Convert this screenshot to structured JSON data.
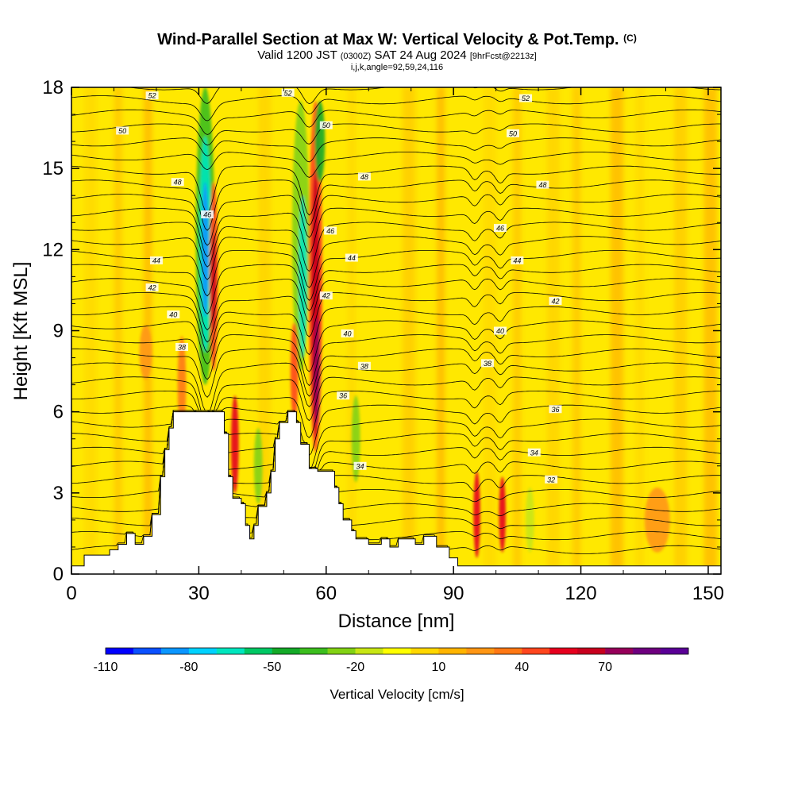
{
  "title": {
    "main": "Wind-Parallel Section at Max W: Vertical Velocity & Pot.Temp.",
    "copyright": "(C)",
    "valid_prefix": "Valid 1200 JST",
    "valid_utc": "(0300Z)",
    "valid_date": "SAT 24 Aug 2024",
    "forecast": "[9hrFcst@2213z]",
    "indices": "i,j,k,angle=92,59,24,116"
  },
  "chart_data": {
    "type": "heatmap",
    "xlabel": "Distance [nm]",
    "ylabel": "Height [Kft MSL]",
    "xlim": [
      0,
      153
    ],
    "ylim": [
      0,
      18
    ],
    "x_ticks": [
      "0",
      "30",
      "60",
      "90",
      "120",
      "150"
    ],
    "y_ticks": [
      "0",
      "3",
      "6",
      "9",
      "12",
      "15",
      "18"
    ],
    "colorbar": {
      "title": "Vertical Velocity [cm/s]",
      "tick_labels": [
        "-110",
        "-80",
        "-50",
        "-20",
        "10",
        "40",
        "70"
      ],
      "colors": [
        "#0000ff",
        "#0a50ff",
        "#0a96ff",
        "#00d2ff",
        "#00e6be",
        "#00c864",
        "#14aa28",
        "#3cbe1e",
        "#82d214",
        "#c8e614",
        "#ffff00",
        "#ffd700",
        "#ffb400",
        "#ff9614",
        "#ff7814",
        "#ff461e",
        "#e6001e",
        "#c8001e",
        "#96005a",
        "#6e007f",
        "#5a0096"
      ]
    },
    "terrain_kft": [
      [
        0,
        0.3
      ],
      [
        3,
        0.3
      ],
      [
        3,
        0.7
      ],
      [
        9,
        0.7
      ],
      [
        9,
        0.9
      ],
      [
        11,
        0.9
      ],
      [
        11,
        1.1
      ],
      [
        13,
        1.1
      ],
      [
        13,
        1.5
      ],
      [
        15,
        1.5
      ],
      [
        15,
        1.1
      ],
      [
        17,
        1.1
      ],
      [
        17,
        1.4
      ],
      [
        19,
        1.4
      ],
      [
        19,
        2.2
      ],
      [
        21,
        2.2
      ],
      [
        21,
        3.6
      ],
      [
        22,
        3.6
      ],
      [
        22,
        4.6
      ],
      [
        23,
        4.6
      ],
      [
        23,
        5.4
      ],
      [
        24,
        5.4
      ],
      [
        24,
        6.0
      ],
      [
        30,
        6.0
      ],
      [
        30,
        6.0
      ],
      [
        36,
        6.0
      ],
      [
        36,
        5.2
      ],
      [
        37,
        5.2
      ],
      [
        37,
        3.6
      ],
      [
        38,
        3.6
      ],
      [
        38,
        2.8
      ],
      [
        40,
        2.8
      ],
      [
        40,
        2.6
      ],
      [
        41,
        2.6
      ],
      [
        41,
        1.8
      ],
      [
        42,
        1.8
      ],
      [
        42,
        1.3
      ],
      [
        43,
        1.3
      ],
      [
        43,
        1.8
      ],
      [
        44,
        1.8
      ],
      [
        44,
        2.5
      ],
      [
        46,
        2.5
      ],
      [
        46,
        3.0
      ],
      [
        47,
        3.0
      ],
      [
        47,
        3.8
      ],
      [
        48,
        3.8
      ],
      [
        48,
        5.0
      ],
      [
        49,
        5.0
      ],
      [
        49,
        5.6
      ],
      [
        51,
        5.6
      ],
      [
        51,
        6.0
      ],
      [
        53,
        6.0
      ],
      [
        53,
        5.6
      ],
      [
        54,
        5.6
      ],
      [
        54,
        4.8
      ],
      [
        56,
        4.8
      ],
      [
        56,
        3.9
      ],
      [
        58,
        3.9
      ],
      [
        58,
        3.8
      ],
      [
        62,
        3.8
      ],
      [
        62,
        3.2
      ],
      [
        63,
        3.2
      ],
      [
        63,
        2.6
      ],
      [
        64,
        2.6
      ],
      [
        64,
        2.0
      ],
      [
        66,
        2.0
      ],
      [
        66,
        1.6
      ],
      [
        67,
        1.6
      ],
      [
        67,
        1.3
      ],
      [
        70,
        1.3
      ],
      [
        70,
        1.1
      ],
      [
        73,
        1.1
      ],
      [
        73,
        1.3
      ],
      [
        75,
        1.3
      ],
      [
        75,
        1.0
      ],
      [
        77,
        1.0
      ],
      [
        77,
        1.3
      ],
      [
        81,
        1.3
      ],
      [
        81,
        1.1
      ],
      [
        83,
        1.1
      ],
      [
        83,
        1.4
      ],
      [
        86,
        1.4
      ],
      [
        86,
        1.0
      ],
      [
        89,
        1.0
      ],
      [
        89,
        0.6
      ],
      [
        91,
        0.6
      ],
      [
        91,
        0.3
      ],
      [
        153,
        0.3
      ]
    ],
    "theta_labels": [
      "52",
      "50",
      "48",
      "46",
      "44",
      "42",
      "40",
      "38",
      "36",
      "34",
      "32"
    ]
  }
}
